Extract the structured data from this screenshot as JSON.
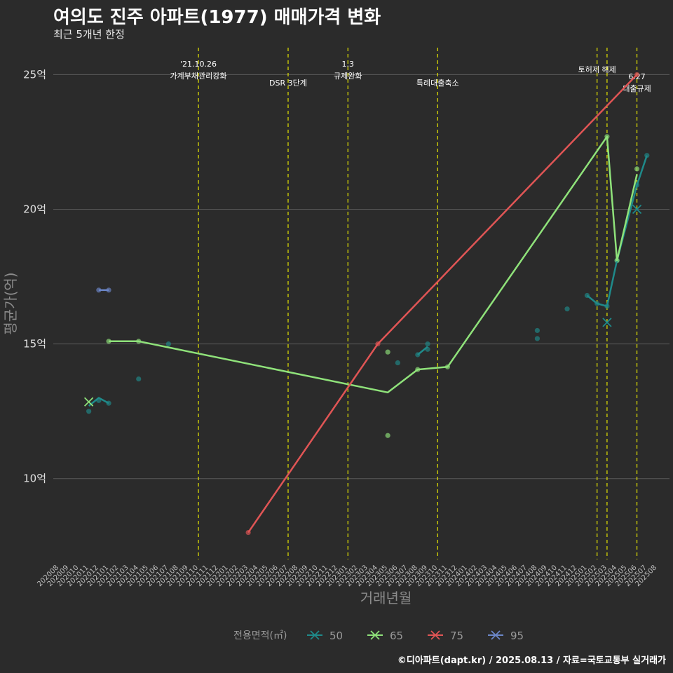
{
  "title": "여의도 진주 아파트(1977) 매매가격 변화",
  "subtitle": "최근 5개년 한정",
  "caption": "©디아파트(dapt.kr) / 2025.08.13 / 자료=국토교통부 실거래가",
  "colors": {
    "background": "#2b2b2b",
    "grid": "#5a5a5a",
    "event_line": "#e6e600",
    "s50": "#1f8a8a",
    "s65": "#8fe27a",
    "s75": "#e05555",
    "s95": "#6b86c8"
  },
  "chart_data": {
    "type": "line",
    "title": "여의도 진주 아파트(1977) 매매가격 변화",
    "xlabel": "거래년월",
    "ylabel": "평균가(억)",
    "ylim": [
      7,
      26
    ],
    "y_ticks": [
      10,
      15,
      20,
      25
    ],
    "y_tick_labels": [
      "10억",
      "15억",
      "20억",
      "25억"
    ],
    "x_categories": [
      "202008",
      "202009",
      "202010",
      "202011",
      "202012",
      "202101",
      "202102",
      "202103",
      "202104",
      "202105",
      "202106",
      "202107",
      "202108",
      "202109",
      "202110",
      "202111",
      "202112",
      "202201",
      "202202",
      "202203",
      "202204",
      "202205",
      "202206",
      "202207",
      "202208",
      "202209",
      "202210",
      "202211",
      "202212",
      "202301",
      "202302",
      "202303",
      "202304",
      "202305",
      "202306",
      "202307",
      "202308",
      "202309",
      "202310",
      "202311",
      "202312",
      "202401",
      "202402",
      "202403",
      "202404",
      "202405",
      "202406",
      "202407",
      "202408",
      "202409",
      "202410",
      "202411",
      "202412",
      "202501",
      "202502",
      "202503",
      "202504",
      "202505",
      "202506",
      "202507",
      "202508"
    ],
    "legend_title": "전용면적(㎡)",
    "series": [
      {
        "name": "50",
        "line": [
          [
            "202011",
            12.7
          ],
          [
            "202012",
            13.0
          ],
          [
            "202101",
            12.8
          ]
        ],
        "points": [
          [
            "202011",
            12.5
          ],
          [
            "202012",
            12.9
          ],
          [
            "202101",
            12.8
          ],
          [
            "202104",
            13.7
          ],
          [
            "202107",
            15.0
          ],
          [
            "202308",
            14.6
          ],
          [
            "202309",
            14.8
          ],
          [
            "202309",
            15.0
          ],
          [
            "202306",
            14.3
          ],
          [
            "202408",
            15.5
          ],
          [
            "202408",
            15.2
          ],
          [
            "202411",
            16.3
          ],
          [
            "202501",
            16.8
          ],
          [
            "202502",
            16.5
          ],
          [
            "202503",
            16.4
          ],
          [
            "202504",
            18.1
          ],
          [
            "202506",
            20.9
          ],
          [
            "202507",
            22.0
          ]
        ],
        "line2": [
          [
            "202308",
            14.6
          ],
          [
            "202309",
            14.9
          ]
        ],
        "line3": [
          [
            "202501",
            16.8
          ],
          [
            "202502",
            16.5
          ],
          [
            "202503",
            16.4
          ],
          [
            "202504",
            18.1
          ],
          [
            "202506",
            20.9
          ],
          [
            "202507",
            22.0
          ]
        ],
        "crosses": [
          [
            "202503",
            15.8
          ],
          [
            "202506",
            20.0
          ]
        ]
      },
      {
        "name": "65",
        "line": [
          [
            "202101",
            15.1
          ],
          [
            "202104",
            15.1
          ],
          [
            "202305",
            13.2
          ],
          [
            "202308",
            14.05
          ],
          [
            "202311",
            14.15
          ],
          [
            "202503",
            22.7
          ],
          [
            "202504",
            18.1
          ],
          [
            "202506",
            21.3
          ]
        ],
        "points": [
          [
            "202101",
            15.1
          ],
          [
            "202104",
            15.1
          ],
          [
            "202305",
            14.7
          ],
          [
            "202305",
            11.6
          ],
          [
            "202308",
            14.05
          ],
          [
            "202311",
            14.15
          ],
          [
            "202503",
            22.7
          ],
          [
            "202504",
            18.1
          ],
          [
            "202506",
            21.5
          ]
        ],
        "crosses": [
          [
            "202011",
            12.85
          ]
        ]
      },
      {
        "name": "75",
        "line": [
          [
            "202203",
            8.0
          ],
          [
            "202304",
            15.0
          ],
          [
            "202506",
            25.0
          ]
        ],
        "points": [
          [
            "202203",
            8.0
          ],
          [
            "202304",
            15.0
          ],
          [
            "202506",
            25.0
          ]
        ],
        "crosses": []
      },
      {
        "name": "95",
        "line": [
          [
            "202012",
            17.0
          ],
          [
            "202101",
            17.0
          ]
        ],
        "points": [
          [
            "202012",
            17.0
          ],
          [
            "202101",
            17.0
          ]
        ],
        "crosses": []
      }
    ],
    "events": [
      {
        "month": "202110",
        "lines": [
          "'21.10.26",
          "가계부채관리강화"
        ],
        "level": 1
      },
      {
        "month": "202207",
        "lines": [
          "DSR 3단계"
        ],
        "level": 3
      },
      {
        "month": "202301",
        "lines": [
          "1.3",
          "규제완화"
        ],
        "level": 1
      },
      {
        "month": "202310",
        "lines": [
          "특례대출축소"
        ],
        "level": 3
      },
      {
        "month": "202502",
        "lines": [
          "토허제 해제"
        ],
        "level": 2
      },
      {
        "month": "202503",
        "lines": [],
        "level": 0
      },
      {
        "month": "202506",
        "lines": [
          "6.27",
          "대출규제"
        ],
        "level": 4
      }
    ]
  }
}
